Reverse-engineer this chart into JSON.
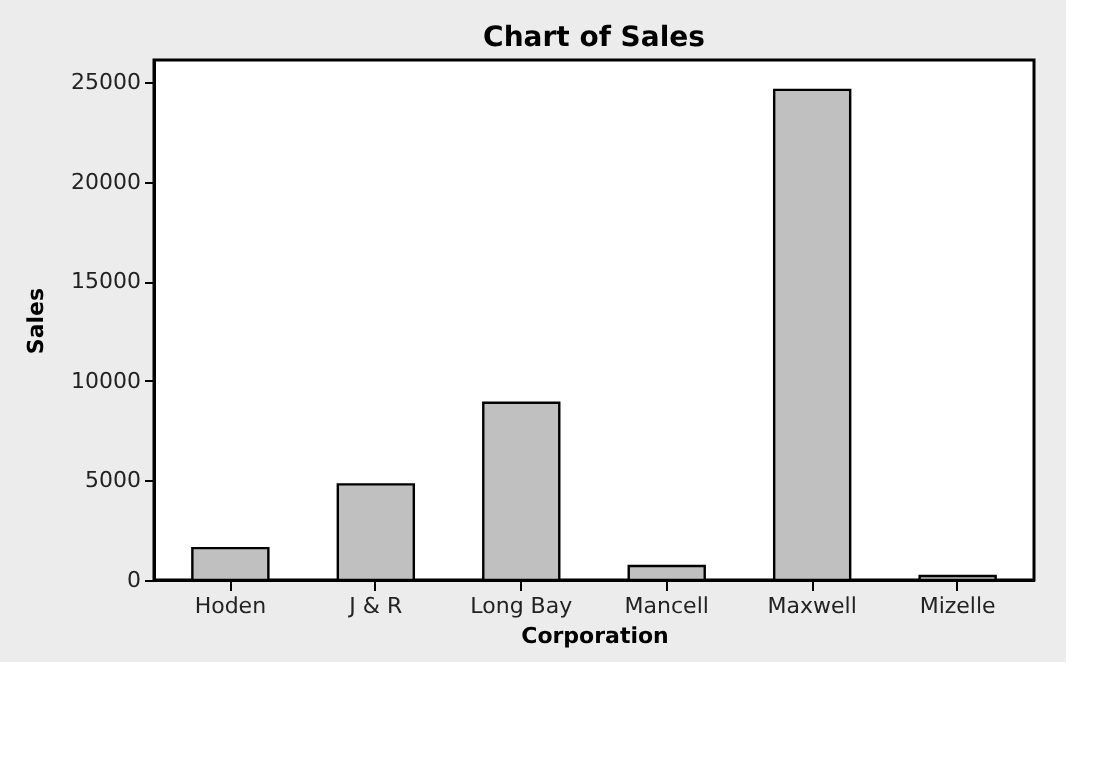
{
  "chart_data": {
    "type": "bar",
    "title": "Chart of Sales",
    "xlabel": "Corporation",
    "ylabel": "Sales",
    "categories": [
      "Hoden",
      "J & R",
      "Long Bay",
      "Mancell",
      "Maxwell",
      "Mizelle"
    ],
    "values": [
      1600,
      4800,
      8900,
      700,
      24600,
      200
    ],
    "color": "#c0c0c0",
    "ylim": [
      0,
      26100
    ],
    "yticks": [
      0,
      5000,
      10000,
      15000,
      20000,
      25000
    ],
    "grid": false
  }
}
